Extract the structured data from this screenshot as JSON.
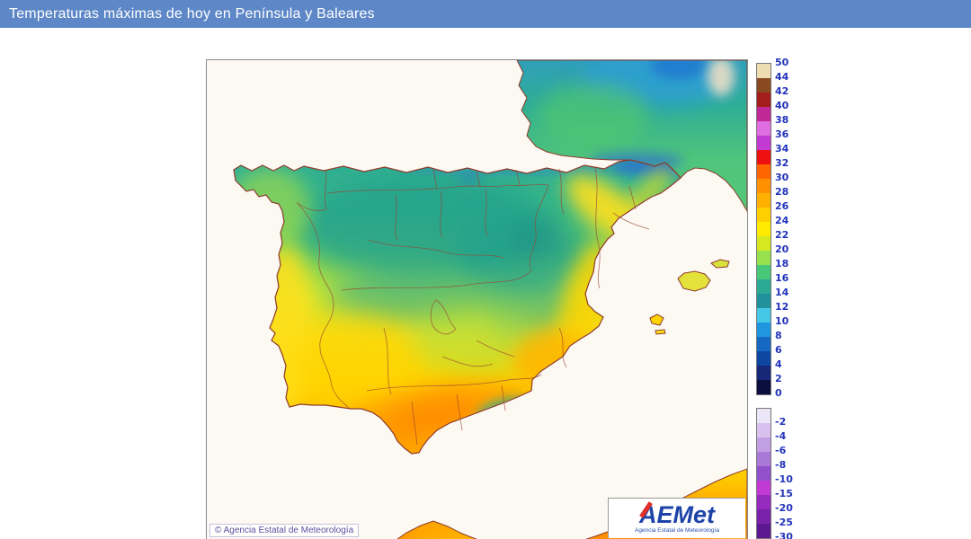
{
  "header": {
    "title": "Temperaturas máximas de hoy en Península y Baleares"
  },
  "map": {
    "copyright": "© Agencia Estatal de Meteorología",
    "logo_text": "AEMet",
    "logo_subtext": "Agencia Estatal de Meteorología"
  },
  "legend": {
    "upper": {
      "labels": [
        "50",
        "44",
        "42",
        "40",
        "38",
        "36",
        "34",
        "32",
        "30",
        "28",
        "26",
        "24",
        "22",
        "20",
        "18",
        "16",
        "14",
        "12",
        "10",
        "8",
        "6",
        "4",
        "2",
        "0"
      ],
      "colors": [
        "#eedcb2",
        "#8a4a21",
        "#a31d1d",
        "#bf2896",
        "#df6ee0",
        "#c23ad2",
        "#ee1111",
        "#ff6600",
        "#ff9100",
        "#ffb000",
        "#ffd000",
        "#ffea00",
        "#d6e81f",
        "#97e14f",
        "#46c878",
        "#2bab96",
        "#21919b",
        "#45c8e8",
        "#2196e0",
        "#1668c0",
        "#0d47a1",
        "#182878",
        "#0b0f3e"
      ]
    },
    "lower": {
      "labels": [
        "-2",
        "-4",
        "-6",
        "-8",
        "-10",
        "-15",
        "-20",
        "-25",
        "-30"
      ],
      "colors": [
        "#ebe5f8",
        "#d8c1ee",
        "#c29fe3",
        "#aa78d6",
        "#9150cc",
        "#c13ad1",
        "#952bbf",
        "#7a22aa",
        "#5c1890"
      ]
    }
  },
  "palette": {
    "header_bg": "#5d87c6",
    "sea": "#fcf9f2",
    "coast_border": "#8d3b2b",
    "legend_label_color": "#2233bb"
  }
}
